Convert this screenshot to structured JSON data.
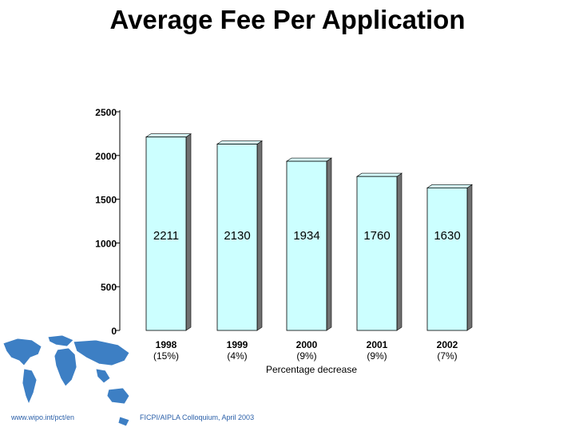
{
  "title": "Average Fee Per Application",
  "chart_data": {
    "type": "bar",
    "categories": [
      "1998",
      "1999",
      "2000",
      "2001",
      "2002"
    ],
    "values": [
      2211,
      2130,
      1934,
      1760,
      1630
    ],
    "value_labels": [
      "2211",
      "2130",
      "1934",
      "1760",
      "1630"
    ],
    "percent_labels": [
      "(15%)",
      "(4%)",
      "(9%)",
      "(9%)",
      "(7%)"
    ],
    "xlabel": "Percentage decrease",
    "ylabel": "",
    "ylim": [
      0,
      2500
    ],
    "yticks": [
      "0",
      "500",
      "1000",
      "1500",
      "2000",
      "2500"
    ],
    "grid": false,
    "colors": {
      "bar_face": "#ccffff",
      "bar_side": "#707070",
      "bar_top": "#d8ffff"
    }
  },
  "footer": {
    "url": "www.wipo.int/pct/en",
    "caption": "FICPI/AIPLA Colloquium, April 2003"
  },
  "logo": {
    "icon": "world-map-icon",
    "color": "#3d7fc4"
  }
}
